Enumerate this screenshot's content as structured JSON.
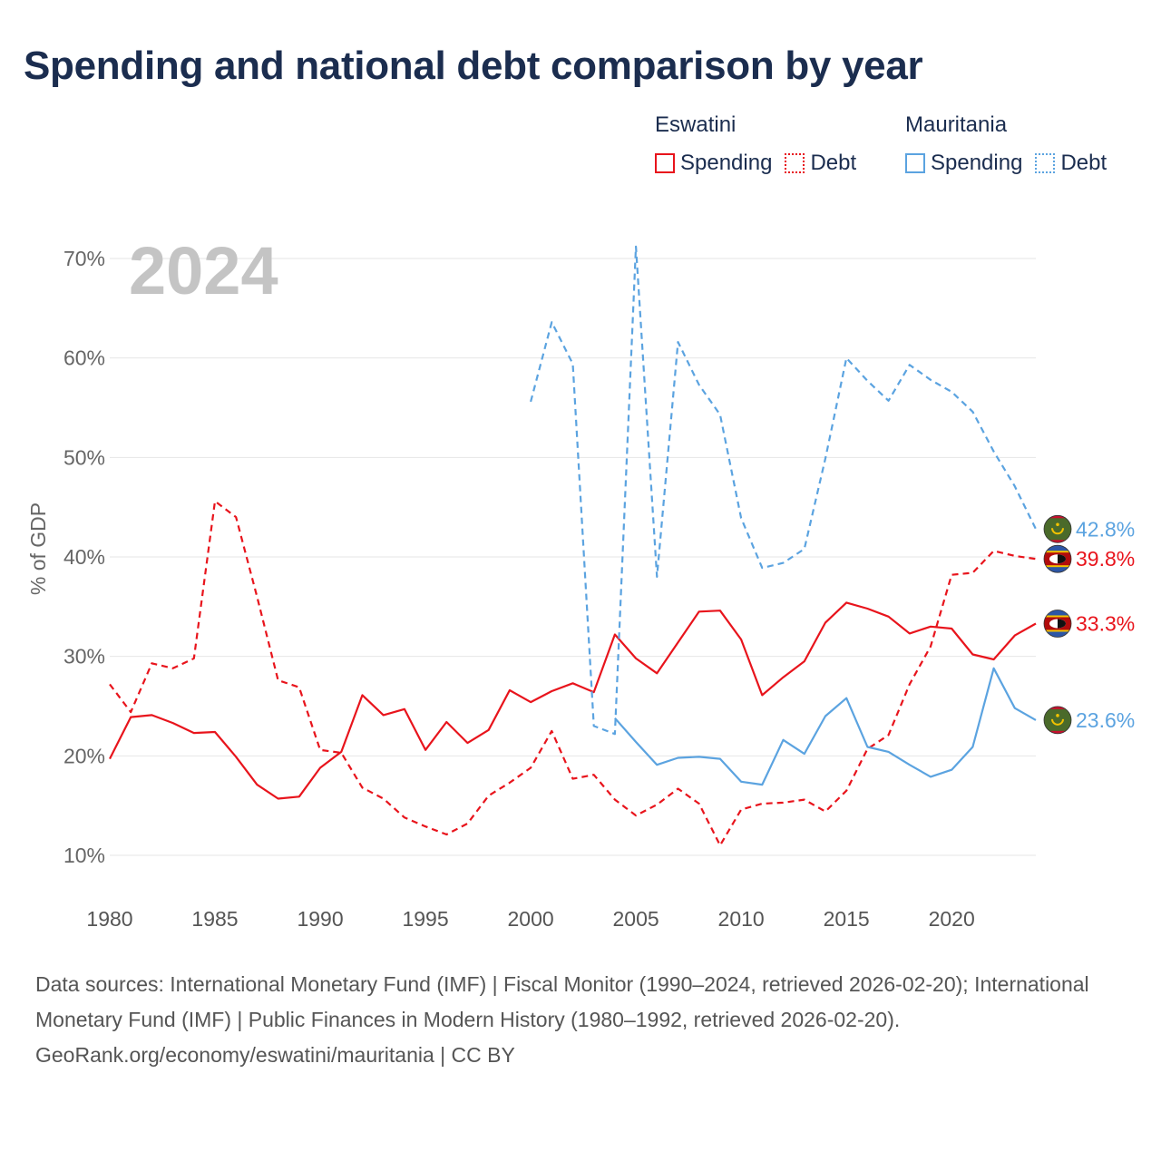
{
  "title": "Spending and national debt comparison by year",
  "legend": {
    "groups": [
      {
        "country": "Eswatini",
        "color": "#e8141c",
        "items": [
          {
            "label": "Spending",
            "style": "solid"
          },
          {
            "label": "Debt",
            "style": "dotted"
          }
        ]
      },
      {
        "country": "Mauritania",
        "color": "#5ba3e0",
        "items": [
          {
            "label": "Spending",
            "style": "solid"
          },
          {
            "label": "Debt",
            "style": "dotted"
          }
        ]
      }
    ]
  },
  "year_label": "2024",
  "footer": {
    "sources": "Data sources: International Monetary Fund (IMF) | Fiscal Monitor (1990–2024, retrieved 2026-02-20); International Monetary Fund (IMF) | Public Finances in Modern History (1980–1992, retrieved 2026-02-20).",
    "credit": "GeoRank.org/economy/eswatini/mauritania | CC BY"
  },
  "chart_data": {
    "type": "line",
    "title": "Spending and national debt comparison by year",
    "xlabel": "",
    "ylabel": "% of GDP",
    "xlim": [
      1980,
      2024
    ],
    "ylim": [
      10,
      70
    ],
    "x_ticks": [
      1980,
      1985,
      1990,
      1995,
      2000,
      2005,
      2010,
      2015,
      2020
    ],
    "y_ticks": [
      10,
      20,
      30,
      40,
      50,
      60,
      70
    ],
    "y_tick_labels": [
      "10%",
      "20%",
      "30%",
      "40%",
      "50%",
      "60%",
      "70%"
    ],
    "grid": true,
    "series": [
      {
        "name": "Eswatini Spending",
        "country": "Eswatini",
        "dash": "solid",
        "color": "#e8141c",
        "start_year": 1980,
        "end_label": "33.3%",
        "flag": "eswatini",
        "values": [
          19.7,
          23.9,
          24.1,
          23.3,
          22.3,
          22.4,
          19.9,
          17.1,
          15.7,
          15.9,
          18.8,
          20.4,
          26.1,
          24.1,
          24.7,
          20.6,
          23.4,
          21.3,
          22.6,
          26.6,
          25.4,
          26.5,
          27.3,
          26.4,
          32.2,
          29.8,
          28.3,
          31.4,
          34.5,
          34.6,
          31.7,
          26.1,
          27.9,
          29.5,
          33.4,
          35.4,
          34.8,
          34.0,
          32.3,
          33.0,
          32.8,
          30.2,
          29.7,
          32.1,
          33.3
        ]
      },
      {
        "name": "Eswatini Debt",
        "country": "Eswatini",
        "dash": "dashed",
        "color": "#e8141c",
        "start_year": 1980,
        "end_label": "39.8%",
        "flag": "eswatini",
        "values": [
          27.2,
          24.4,
          29.3,
          28.8,
          29.8,
          45.6,
          44.0,
          36.0,
          27.6,
          26.9,
          20.6,
          20.3,
          16.8,
          15.7,
          13.8,
          12.9,
          12.1,
          13.2,
          16.0,
          17.3,
          18.8,
          22.5,
          17.7,
          18.1,
          15.6,
          14.0,
          15.1,
          16.7,
          15.2,
          11.0,
          14.6,
          15.2,
          15.3,
          15.6,
          14.4,
          16.5,
          20.7,
          22.1,
          27.2,
          31.0,
          38.2,
          38.4,
          40.6,
          40.1,
          39.8
        ]
      },
      {
        "name": "Mauritania Spending",
        "country": "Mauritania",
        "dash": "solid",
        "color": "#5ba3e0",
        "start_year": 2004,
        "end_label": "23.6%",
        "flag": "mauritania",
        "values": [
          23.8,
          21.4,
          19.1,
          19.8,
          19.9,
          19.7,
          17.4,
          17.1,
          21.6,
          20.2,
          24.0,
          25.8,
          20.9,
          20.4,
          19.1,
          17.9,
          18.6,
          20.9,
          28.8,
          24.8,
          23.6
        ]
      },
      {
        "name": "Mauritania Debt",
        "country": "Mauritania",
        "dash": "dashed",
        "color": "#5ba3e0",
        "start_year": 2000,
        "end_label": "42.8%",
        "flag": "mauritania",
        "values": [
          55.6,
          63.6,
          59.4,
          23.0,
          22.2,
          71.2,
          38.0,
          61.6,
          57.3,
          54.3,
          43.9,
          38.9,
          39.4,
          40.8,
          49.9,
          60.0,
          57.7,
          55.7,
          59.3,
          57.8,
          56.6,
          54.6,
          50.6,
          47.1,
          42.8
        ]
      }
    ]
  }
}
